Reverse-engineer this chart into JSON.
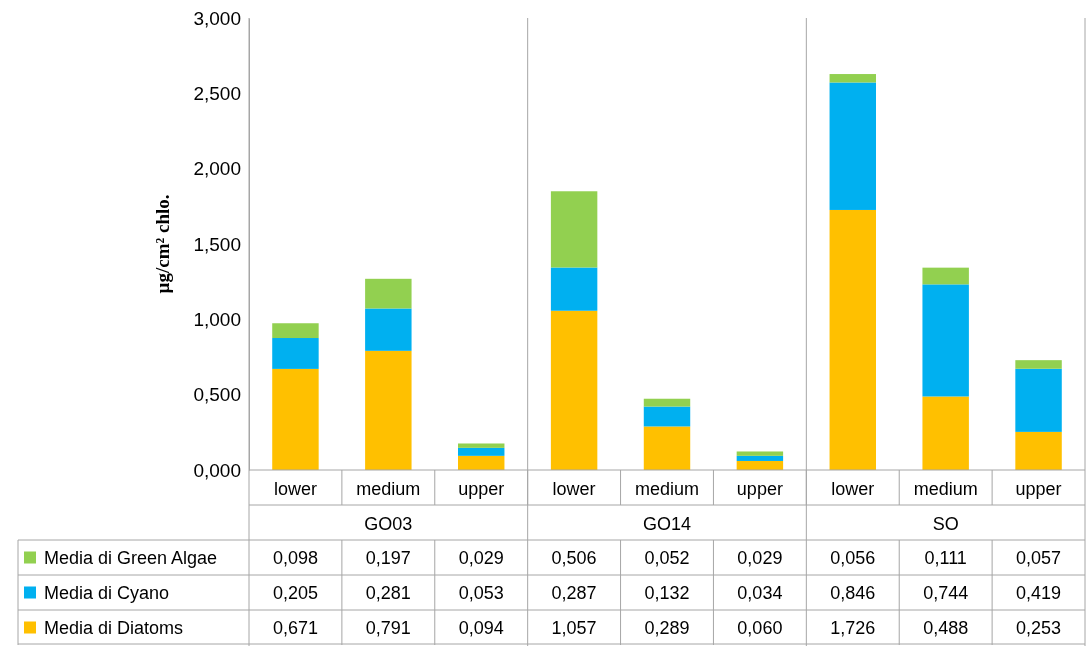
{
  "chart_data": {
    "type": "bar",
    "stacked": true,
    "ylabel": "µg/cm² chlo.",
    "categories": [
      "lower",
      "medium",
      "upper",
      "lower",
      "medium",
      "upper",
      "lower",
      "medium",
      "upper"
    ],
    "annotations": [
      "GO03",
      "GO14",
      "SO"
    ],
    "ylim": [
      0,
      3
    ],
    "yticks": [
      {
        "value": 0,
        "label": "0,000"
      },
      {
        "value": 0.5,
        "label": "0,500"
      },
      {
        "value": 1,
        "label": "1,000"
      },
      {
        "value": 1.5,
        "label": "1,500"
      },
      {
        "value": 2,
        "label": "2,000"
      },
      {
        "value": 2.5,
        "label": "2,500"
      },
      {
        "value": 3,
        "label": "3,000"
      }
    ],
    "legend": "bottom left",
    "series": [
      {
        "name": "Media di Diatoms",
        "color": "#ffc000",
        "values": [
          0.671,
          0.791,
          0.094,
          1.057,
          0.289,
          0.06,
          1.726,
          0.488,
          0.253
        ],
        "value_labels": [
          "0,671",
          "0,791",
          "0,094",
          "1,057",
          "0,289",
          "0,060",
          "1,726",
          "0,488",
          "0,253"
        ]
      },
      {
        "name": "Media di Cyano",
        "color": "#00b0f0",
        "values": [
          0.205,
          0.281,
          0.053,
          0.287,
          0.132,
          0.034,
          0.846,
          0.744,
          0.419
        ],
        "value_labels": [
          "0,205",
          "0,281",
          "0,053",
          "0,287",
          "0,132",
          "0,034",
          "0,846",
          "0,744",
          "0,419"
        ]
      },
      {
        "name": "Media di Green Algae",
        "color": "#92d050",
        "values": [
          0.098,
          0.197,
          0.029,
          0.506,
          0.052,
          0.029,
          0.056,
          0.111,
          0.057
        ],
        "value_labels": [
          "0,098",
          "0,197",
          "0,029",
          "0,506",
          "0,052",
          "0,029",
          "0,056",
          "0,111",
          "0,057"
        ]
      }
    ]
  }
}
